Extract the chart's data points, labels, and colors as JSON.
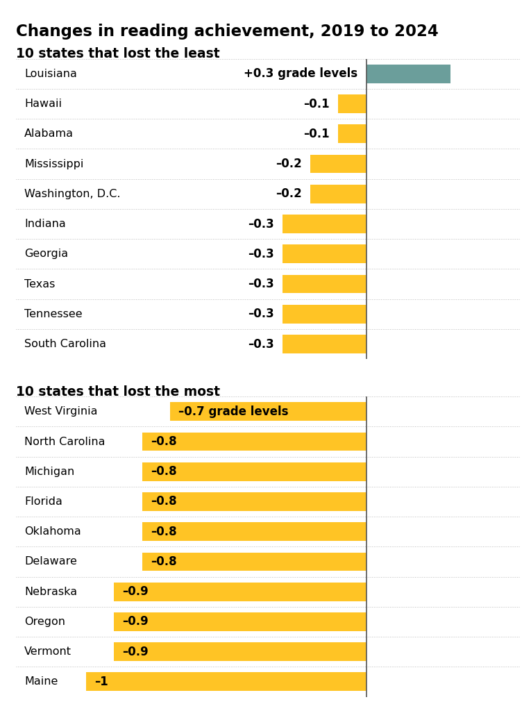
{
  "title": "Changes in reading achievement, 2019 to 2024",
  "section1_header": "10 states that lost the least",
  "section2_header": "10 states that lost the most",
  "top10_states": [
    "Louisiana",
    "Hawaii",
    "Alabama",
    "Mississippi",
    "Washington, D.C.",
    "Indiana",
    "Georgia",
    "Texas",
    "Tennessee",
    "South Carolina"
  ],
  "top10_values": [
    0.3,
    -0.1,
    -0.1,
    -0.2,
    -0.2,
    -0.3,
    -0.3,
    -0.3,
    -0.3,
    -0.3
  ],
  "top10_labels": [
    "+0.3",
    "–0.1",
    "–0.1",
    "–0.2",
    "–0.2",
    "–0.3",
    "–0.3",
    "–0.3",
    "–0.3",
    "–0.3"
  ],
  "bottom10_states": [
    "West Virginia",
    "North Carolina",
    "Michigan",
    "Florida",
    "Oklahoma",
    "Delaware",
    "Nebraska",
    "Oregon",
    "Vermont",
    "Maine"
  ],
  "bottom10_values": [
    -0.7,
    -0.8,
    -0.8,
    -0.8,
    -0.8,
    -0.8,
    -0.9,
    -0.9,
    -0.9,
    -1.0
  ],
  "bottom10_labels": [
    "–0.7",
    "–0.8",
    "–0.8",
    "–0.8",
    "–0.8",
    "–0.8",
    "–0.9",
    "–0.9",
    "–0.9",
    "–1"
  ],
  "positive_color": "#6b9e9b",
  "negative_color": "#ffc425",
  "background_color": "#ffffff",
  "grade_levels_label": "grade levels",
  "bar_height": 0.62,
  "xlim_min": -1.25,
  "xlim_max": 0.55,
  "zero_line_color": "#555555",
  "sep_line_color": "#bbbbbb"
}
